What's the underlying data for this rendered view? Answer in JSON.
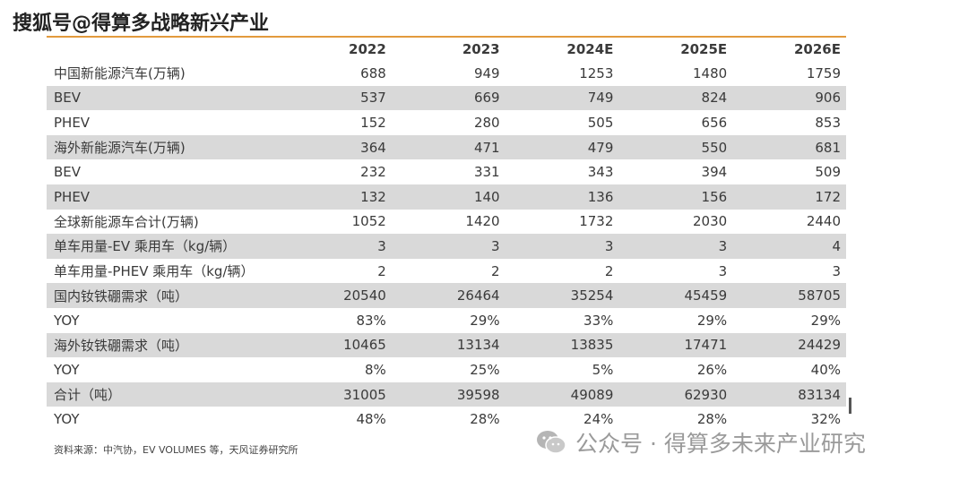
{
  "watermark_top": "搜狐号@得算多战略新兴产业",
  "table": {
    "headers": [
      "",
      "2022",
      "2023",
      "2024E",
      "2025E",
      "2026E"
    ],
    "rows": [
      {
        "label": "中国新能源汽车(万辆)",
        "values": [
          "688",
          "949",
          "1253",
          "1480",
          "1759"
        ],
        "shaded": false
      },
      {
        "label": "BEV",
        "values": [
          "537",
          "669",
          "749",
          "824",
          "906"
        ],
        "shaded": true
      },
      {
        "label": "PHEV",
        "values": [
          "152",
          "280",
          "505",
          "656",
          "853"
        ],
        "shaded": false
      },
      {
        "label": "海外新能源汽车(万辆)",
        "values": [
          "364",
          "471",
          "479",
          "550",
          "681"
        ],
        "shaded": true
      },
      {
        "label": "BEV",
        "values": [
          "232",
          "331",
          "343",
          "394",
          "509"
        ],
        "shaded": false
      },
      {
        "label": "PHEV",
        "values": [
          "132",
          "140",
          "136",
          "156",
          "172"
        ],
        "shaded": true
      },
      {
        "label": "全球新能源车合计(万辆)",
        "values": [
          "1052",
          "1420",
          "1732",
          "2030",
          "2440"
        ],
        "shaded": false
      },
      {
        "label": "单车用量-EV 乘用车（kg/辆）",
        "values": [
          "3",
          "3",
          "3",
          "3",
          "4"
        ],
        "shaded": true
      },
      {
        "label": "单车用量-PHEV 乘用车（kg/辆）",
        "values": [
          "2",
          "2",
          "2",
          "3",
          "3"
        ],
        "shaded": false
      },
      {
        "label": "国内钕铁硼需求（吨）",
        "values": [
          "20540",
          "26464",
          "35254",
          "45459",
          "58705"
        ],
        "shaded": true
      },
      {
        "label": "YOY",
        "values": [
          "83%",
          "29%",
          "33%",
          "29%",
          "29%"
        ],
        "shaded": false
      },
      {
        "label": "海外钕铁硼需求（吨）",
        "values": [
          "10465",
          "13134",
          "13835",
          "17471",
          "24429"
        ],
        "shaded": true
      },
      {
        "label": "YOY",
        "values": [
          "8%",
          "25%",
          "5%",
          "26%",
          "40%"
        ],
        "shaded": false
      },
      {
        "label": "合计（吨）",
        "values": [
          "31005",
          "39598",
          "49089",
          "62930",
          "83134"
        ],
        "shaded": true
      },
      {
        "label": "YOY",
        "values": [
          "48%",
          "28%",
          "24%",
          "28%",
          "32%"
        ],
        "shaded": false
      }
    ]
  },
  "source": "资料来源：中汽协，EV VOLUMES 等，天风证券研究所",
  "wechat_watermark": "公众号 · 得算多未来产业研究",
  "colors": {
    "header_line": "#e39a3d",
    "shade": "#d9d9d9"
  },
  "icons": {
    "wechat": "wechat-icon"
  }
}
